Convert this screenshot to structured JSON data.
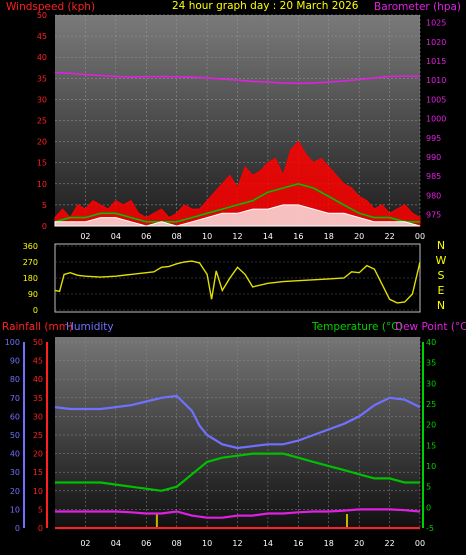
{
  "header": {
    "windspeed_label": "Windspeed (kph)",
    "title": "24 hour graph day : 20 March 2026",
    "barometer_label": "Barometer (hpa)"
  },
  "lower_header": {
    "rainfall_label": "Rainfall (mm)",
    "humidity_label": "Humidity",
    "temperature_label": "Temperature (°C)",
    "dewpoint_label": "Dew Point (°C)"
  },
  "compass": [
    "N",
    "W",
    "S",
    "E",
    "N"
  ],
  "colors": {
    "windspeed": "#ff0000",
    "wind_gust_avg": "#00c000",
    "wind_avg": "#ffffff",
    "barometer": "#e020e0",
    "direction": "#e0e000",
    "rainfall": "#ff2020",
    "humidity": "#7070ff",
    "temperature": "#00c000",
    "dewpoint": "#e020e0",
    "rain_bar": "#c8b400"
  },
  "chart_data": [
    {
      "type": "line",
      "name": "wind-and-pressure",
      "xticks": [
        "02",
        "04",
        "06",
        "08",
        "10",
        "12",
        "14",
        "16",
        "18",
        "20",
        "22",
        "00"
      ],
      "xlim": [
        0,
        24
      ],
      "left_axis": {
        "label": "Windspeed (kph)",
        "ticks": [
          0,
          5,
          10,
          15,
          20,
          25,
          30,
          35,
          40,
          45,
          50
        ],
        "ylim": [
          0,
          50
        ]
      },
      "right_axis": {
        "label": "Barometer (hpa)",
        "ticks": [
          975,
          980,
          985,
          990,
          995,
          1000,
          1005,
          1010,
          1015,
          1020,
          1025
        ],
        "ylim": [
          972,
          1027
        ]
      },
      "series": [
        {
          "key": "gust",
          "axis": "left",
          "x": [
            0,
            0.5,
            1,
            1.5,
            2,
            2.5,
            3,
            3.5,
            4,
            4.5,
            5,
            5.5,
            6,
            6.5,
            7,
            7.5,
            8,
            8.5,
            9,
            9.5,
            10,
            10.5,
            11,
            11.5,
            12,
            12.5,
            13,
            13.5,
            14,
            14.5,
            15,
            15.5,
            16,
            16.5,
            17,
            17.5,
            18,
            18.5,
            19,
            19.5,
            20,
            20.5,
            21,
            21.5,
            22,
            22.5,
            23,
            23.5,
            24
          ],
          "values": [
            2,
            4,
            2,
            5,
            4,
            6,
            5,
            4,
            6,
            5,
            6,
            3,
            2,
            3,
            4,
            2,
            3,
            5,
            4,
            4,
            6,
            8,
            10,
            12,
            9,
            14,
            12,
            13,
            15,
            16,
            12,
            18,
            20,
            17,
            15,
            16,
            14,
            12,
            10,
            9,
            7,
            6,
            4,
            5,
            3,
            4,
            5,
            3,
            2
          ]
        },
        {
          "key": "average",
          "axis": "left",
          "x": [
            0,
            1,
            2,
            3,
            4,
            5,
            6,
            7,
            8,
            9,
            10,
            11,
            12,
            13,
            14,
            15,
            16,
            17,
            18,
            19,
            20,
            21,
            22,
            23,
            24
          ],
          "values": [
            1,
            2,
            2,
            3,
            3,
            2,
            1,
            1,
            1,
            2,
            3,
            4,
            5,
            6,
            8,
            9,
            10,
            9,
            7,
            5,
            3,
            2,
            2,
            1,
            1
          ]
        },
        {
          "key": "speed",
          "axis": "left",
          "x": [
            0,
            1,
            2,
            3,
            4,
            5,
            6,
            7,
            8,
            9,
            10,
            11,
            12,
            13,
            14,
            15,
            16,
            17,
            18,
            19,
            20,
            21,
            22,
            23,
            24
          ],
          "values": [
            1,
            1,
            1,
            2,
            2,
            1,
            0,
            1,
            0,
            1,
            2,
            3,
            3,
            4,
            4,
            5,
            5,
            4,
            3,
            3,
            2,
            1,
            1,
            1,
            0
          ]
        },
        {
          "key": "barometer",
          "axis": "right",
          "x": [
            0,
            1,
            2,
            3,
            4,
            5,
            6,
            7,
            8,
            9,
            10,
            11,
            12,
            13,
            14,
            15,
            16,
            17,
            18,
            19,
            20,
            21,
            22,
            23,
            24
          ],
          "values": [
            1012,
            1011.8,
            1011.5,
            1011.2,
            1011,
            1010.8,
            1010.9,
            1011,
            1010.9,
            1010.8,
            1010.6,
            1010.3,
            1010,
            1009.7,
            1009.5,
            1009.3,
            1009.2,
            1009.3,
            1009.5,
            1009.8,
            1010.2,
            1010.6,
            1011,
            1011.1,
            1011
          ]
        }
      ]
    },
    {
      "type": "line",
      "name": "wind-direction",
      "xlim": [
        0,
        24
      ],
      "y_ticks": [
        0,
        90,
        180,
        270,
        360
      ],
      "ylim": [
        0,
        360
      ],
      "series": [
        {
          "key": "direction",
          "x": [
            0,
            0.3,
            0.6,
            1,
            1.5,
            2,
            3,
            4,
            5,
            5.5,
            6,
            6.5,
            7,
            7.5,
            8,
            8.5,
            9,
            9.5,
            10,
            10.3,
            10.6,
            11,
            11.5,
            12,
            12.5,
            13,
            14,
            15,
            16,
            17,
            18,
            19,
            19.5,
            20,
            20.5,
            21,
            22,
            22.5,
            23,
            23.5,
            24
          ],
          "values": [
            110,
            105,
            200,
            210,
            195,
            190,
            185,
            190,
            200,
            205,
            210,
            215,
            240,
            245,
            260,
            270,
            275,
            265,
            200,
            60,
            220,
            110,
            180,
            240,
            200,
            130,
            150,
            160,
            165,
            170,
            175,
            180,
            215,
            210,
            250,
            230,
            60,
            40,
            45,
            90,
            270
          ]
        }
      ]
    },
    {
      "type": "line",
      "name": "rain-humidity-temperature",
      "xticks": [
        "02",
        "04",
        "06",
        "08",
        "10",
        "12",
        "14",
        "16",
        "18",
        "20",
        "22",
        "00"
      ],
      "xlim": [
        0,
        24
      ],
      "humidity_axis": {
        "label": "Humidity",
        "ticks": [
          0,
          10,
          20,
          30,
          40,
          50,
          60,
          70,
          80,
          90,
          100
        ],
        "ylim": [
          0,
          100
        ]
      },
      "rainfall_axis": {
        "label": "Rainfall (mm)",
        "ticks": [
          0,
          5,
          10,
          15,
          20,
          25,
          30,
          35,
          40,
          45,
          50
        ],
        "ylim": [
          0,
          50
        ]
      },
      "temperature_axis": {
        "label": "Temperature (°C)",
        "ticks": [
          -5,
          0,
          5,
          10,
          15,
          20,
          25,
          30,
          35,
          40
        ],
        "ylim": [
          -5,
          40
        ]
      },
      "series": [
        {
          "key": "humidity",
          "axis": "humidity",
          "x": [
            0,
            1,
            2,
            3,
            4,
            5,
            6,
            7,
            8,
            9,
            9.5,
            10,
            11,
            12,
            13,
            14,
            15,
            16,
            17,
            18,
            19,
            20,
            21,
            22,
            23,
            24
          ],
          "values": [
            65,
            64,
            64,
            64,
            65,
            66,
            68,
            70,
            71,
            63,
            55,
            50,
            45,
            43,
            44,
            45,
            45,
            47,
            50,
            53,
            56,
            60,
            66,
            70,
            69,
            65
          ]
        },
        {
          "key": "temperature",
          "axis": "temperature",
          "x": [
            0,
            1,
            2,
            3,
            4,
            5,
            6,
            7,
            8,
            9,
            10,
            11,
            12,
            13,
            14,
            15,
            16,
            17,
            18,
            19,
            20,
            21,
            22,
            23,
            24
          ],
          "values": [
            6,
            6,
            6,
            6,
            5.5,
            5,
            4.5,
            4,
            5,
            8,
            11,
            12,
            12.5,
            13,
            13,
            13,
            12,
            11,
            10,
            9,
            8,
            7,
            7,
            6,
            6
          ]
        },
        {
          "key": "dewpoint",
          "axis": "temperature",
          "x": [
            0,
            1,
            2,
            3,
            4,
            5,
            6,
            7,
            8,
            9,
            10,
            11,
            12,
            13,
            14,
            15,
            16,
            17,
            18,
            19,
            20,
            21,
            22,
            23,
            24
          ],
          "values": [
            -1,
            -1,
            -1,
            -1,
            -1,
            -1.2,
            -1.5,
            -1.5,
            -1,
            -2,
            -2.5,
            -2.5,
            -2,
            -2,
            -1.5,
            -1.5,
            -1.2,
            -1,
            -1,
            -0.8,
            -0.5,
            -0.5,
            -0.5,
            -0.7,
            -1
          ]
        },
        {
          "key": "rainfall",
          "axis": "rainfall",
          "x": [
            0,
            24
          ],
          "values": [
            0,
            0
          ]
        }
      ],
      "rain_events": [
        {
          "time": 6.7,
          "amount": 2
        },
        {
          "time": 19.2,
          "amount": 2
        }
      ]
    }
  ]
}
